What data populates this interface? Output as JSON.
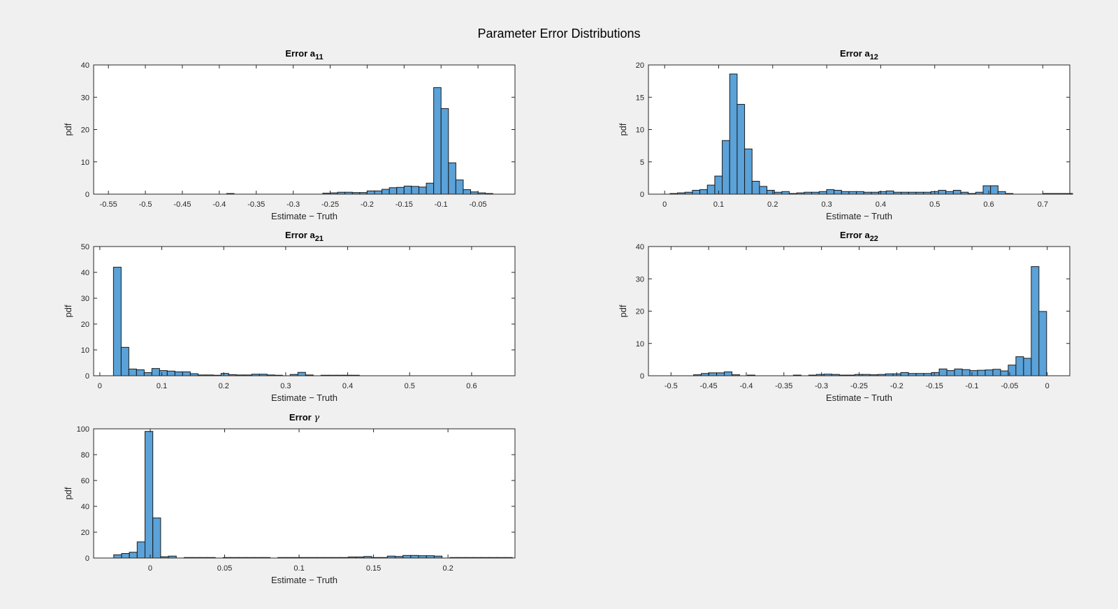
{
  "figure": {
    "title": "Parameter Error Distributions",
    "background": "#f0f0f0",
    "bar_color": "#5aa2d8",
    "edge_color": "#1a1a1a"
  },
  "chart_data": [
    {
      "type": "histogram",
      "title": "Error a",
      "title_subscript": "11",
      "xlabel": "Estimate − Truth",
      "ylabel": "pdf",
      "xlim": [
        -0.57,
        -0.0
      ],
      "ylim": [
        0,
        40
      ],
      "xticks": [
        -0.55,
        -0.5,
        -0.45,
        -0.4,
        -0.35,
        -0.3,
        -0.25,
        -0.2,
        -0.15,
        -0.1,
        -0.05
      ],
      "xtick_labels": [
        "-0.55",
        "-0.5",
        "-0.45",
        "-0.4",
        "-0.35",
        "-0.3",
        "-0.25",
        "-0.2",
        "-0.15",
        "-0.1",
        "-0.05"
      ],
      "yticks": [
        0,
        10,
        20,
        30,
        40
      ],
      "ytick_labels": [
        "0",
        "10",
        "20",
        "30",
        "40"
      ],
      "bin_width": 0.01,
      "bin_start": -0.26,
      "values": [
        0.3,
        0.4,
        0.6,
        0.6,
        0.5,
        0.5,
        1.0,
        1.0,
        1.5,
        2.0,
        2.1,
        2.5,
        2.4,
        2.2,
        3.4,
        33.0,
        26.5,
        9.7,
        4.4,
        1.4,
        0.7,
        0.4,
        0.2
      ],
      "outliers": [
        {
          "x": -0.39,
          "value": 0.2
        }
      ]
    },
    {
      "type": "histogram",
      "title": "Error a",
      "title_subscript": "12",
      "xlabel": "Estimate − Truth",
      "ylabel": "pdf",
      "xlim": [
        -0.03,
        0.75
      ],
      "ylim": [
        0,
        20
      ],
      "xticks": [
        0,
        0.1,
        0.2,
        0.3,
        0.4,
        0.5,
        0.6,
        0.7
      ],
      "xtick_labels": [
        "0",
        "0.1",
        "0.2",
        "0.3",
        "0.4",
        "0.5",
        "0.6",
        "0.7"
      ],
      "yticks": [
        0,
        5,
        10,
        15,
        20
      ],
      "ytick_labels": [
        "0",
        "5",
        "10",
        "15",
        "20"
      ],
      "bin_width": 0.0138,
      "bin_start": 0.01,
      "values": [
        0.1,
        0.2,
        0.3,
        0.6,
        0.7,
        1.4,
        2.8,
        8.3,
        18.6,
        13.9,
        7.0,
        2.0,
        1.2,
        0.6,
        0.3,
        0.4,
        0.1,
        0.2,
        0.3,
        0.3,
        0.4,
        0.7,
        0.6,
        0.4,
        0.4,
        0.4,
        0.3,
        0.3,
        0.4,
        0.5,
        0.3,
        0.3,
        0.3,
        0.3,
        0.3,
        0.4,
        0.6,
        0.4,
        0.6,
        0.3,
        0.1,
        0.3,
        1.3,
        1.3,
        0.4,
        0.1,
        0.0,
        0.0,
        0.0,
        0.0,
        0.1,
        0.1,
        0.1,
        0.1
      ]
    },
    {
      "type": "histogram",
      "title": "Error a",
      "title_subscript": "21",
      "xlabel": "Estimate − Truth",
      "ylabel": "pdf",
      "xlim": [
        -0.01,
        0.67
      ],
      "ylim": [
        0,
        50
      ],
      "xticks": [
        0,
        0.1,
        0.2,
        0.3,
        0.4,
        0.5,
        0.6
      ],
      "xtick_labels": [
        "0",
        "0.1",
        "0.2",
        "0.3",
        "0.4",
        "0.5",
        "0.6"
      ],
      "yticks": [
        0,
        10,
        20,
        30,
        40,
        50
      ],
      "ytick_labels": [
        "0",
        "10",
        "20",
        "30",
        "40",
        "50"
      ],
      "bin_width": 0.0124,
      "bin_start": 0.022,
      "values": [
        42.0,
        11.0,
        2.6,
        2.3,
        1.2,
        2.8,
        2.0,
        1.8,
        1.5,
        1.5,
        0.8,
        0.3,
        0.3,
        0.2,
        0.9,
        0.4,
        0.3,
        0.3,
        0.6,
        0.6,
        0.3,
        0.2,
        0.0,
        0.5,
        1.3,
        0.3,
        0.0,
        0.2,
        0.2,
        0.2,
        0.2,
        0.2
      ]
    },
    {
      "type": "histogram",
      "title": "Error a",
      "title_subscript": "22",
      "xlabel": "Estimate − Truth",
      "ylabel": "pdf",
      "xlim": [
        -0.53,
        0.03
      ],
      "ylim": [
        0,
        40
      ],
      "xticks": [
        -0.5,
        -0.45,
        -0.4,
        -0.35,
        -0.3,
        -0.25,
        -0.2,
        -0.15,
        -0.1,
        -0.05,
        0
      ],
      "xtick_labels": [
        "-0.5",
        "-0.45",
        "-0.4",
        "-0.35",
        "-0.3",
        "-0.25",
        "-0.2",
        "-0.15",
        "-0.1",
        "-0.05",
        "0"
      ],
      "yticks": [
        0,
        10,
        20,
        30,
        40
      ],
      "ytick_labels": [
        "0",
        "10",
        "20",
        "30",
        "40"
      ],
      "bin_width": 0.0102,
      "bin_start": -0.47,
      "values": [
        0.3,
        0.7,
        0.9,
        0.9,
        1.2,
        0.3,
        0.0,
        0.2,
        0.0,
        0.0,
        0.0,
        0.0,
        0.0,
        0.2,
        0.0,
        0.2,
        0.4,
        0.5,
        0.4,
        0.2,
        0.2,
        0.4,
        0.4,
        0.3,
        0.4,
        0.6,
        0.6,
        1.0,
        0.7,
        0.7,
        0.7,
        1.0,
        2.1,
        1.6,
        2.1,
        1.9,
        1.6,
        1.7,
        1.8,
        2.0,
        1.5,
        3.3,
        5.9,
        5.4,
        33.8,
        19.9
      ]
    },
    {
      "type": "histogram",
      "title": "Error ",
      "title_symbol": "γ",
      "xlabel": "Estimate − Truth",
      "ylabel": "pdf",
      "xlim": [
        -0.038,
        0.245
      ],
      "ylim": [
        0,
        100
      ],
      "xticks": [
        0,
        0.05,
        0.1,
        0.15,
        0.2
      ],
      "xtick_labels": [
        "0",
        "0.05",
        "0.1",
        "0.15",
        "0.2"
      ],
      "yticks": [
        0,
        20,
        40,
        60,
        80,
        100
      ],
      "ytick_labels": [
        "0",
        "20",
        "40",
        "60",
        "80",
        "100"
      ],
      "bin_width": 0.00525,
      "bin_start": -0.0245,
      "values": [
        2.5,
        3.5,
        4.5,
        12.5,
        98.0,
        31.0,
        1.0,
        1.5,
        0,
        0.4,
        0.4,
        0.4,
        0.4,
        0,
        0.4,
        0.4,
        0.4,
        0.4,
        0.4,
        0.4,
        0,
        0.4,
        0.4,
        0.4,
        0.4,
        0.4,
        0.4,
        0.4,
        0.4,
        0.4,
        0.8,
        0.8,
        1.2,
        0.4,
        0.4,
        1.5,
        1.2,
        2.0,
        2.0,
        1.8,
        1.8,
        1.5,
        0,
        0.4,
        0.4,
        0.4,
        0.4,
        0.4,
        0.4,
        0.4,
        0.4
      ]
    }
  ]
}
